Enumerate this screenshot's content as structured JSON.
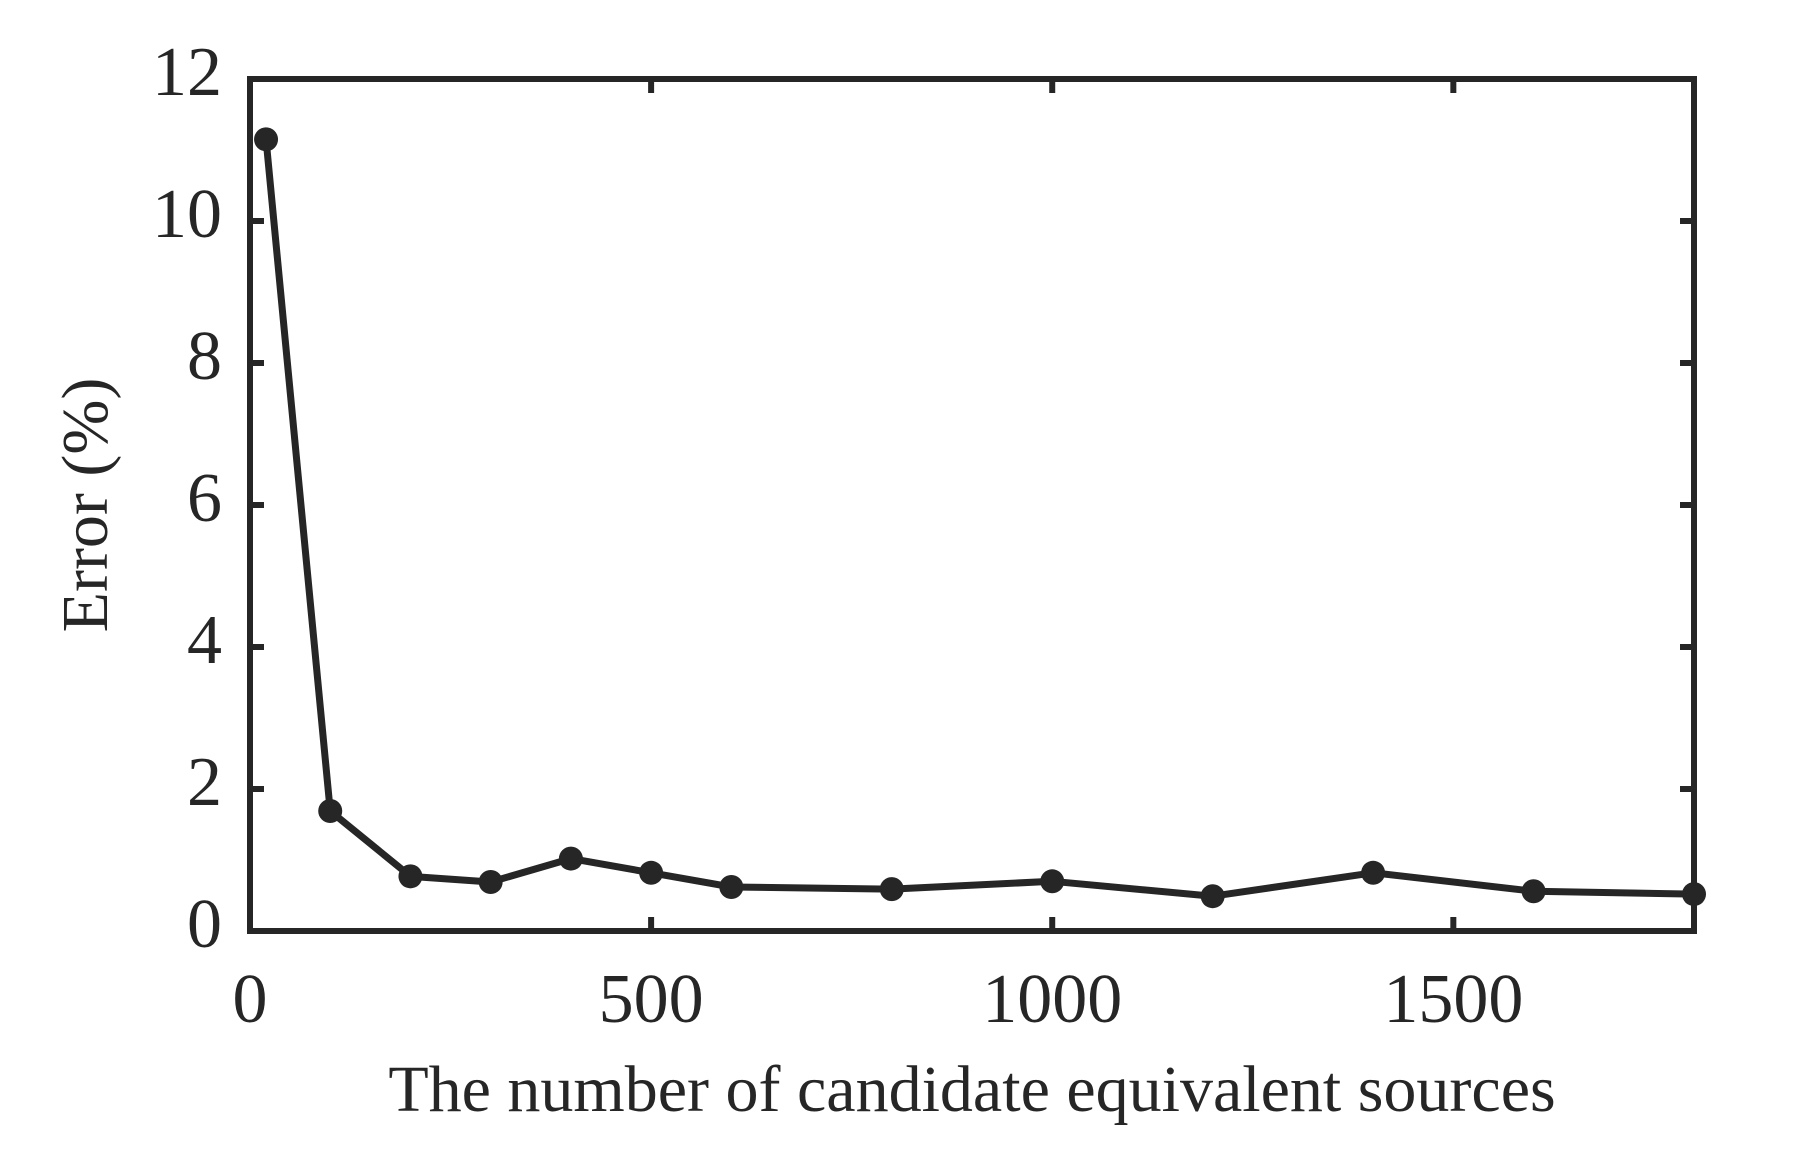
{
  "chart_data": {
    "type": "line",
    "xlabel": "The number of candidate equivalent sources",
    "ylabel": "Error  (%)",
    "x": [
      20,
      100,
      200,
      300,
      400,
      500,
      600,
      800,
      1000,
      1200,
      1400,
      1600,
      1800
    ],
    "series": [
      {
        "color": "#262626",
        "values": [
          11.15,
          1.69,
          0.77,
          0.69,
          1.02,
          0.82,
          0.62,
          0.59,
          0.7,
          0.49,
          0.82,
          0.56,
          0.52
        ]
      }
    ],
    "xlim": [
      0,
      1800
    ],
    "ylim": [
      0,
      12
    ],
    "xticks": [
      0,
      500,
      1000,
      1500
    ],
    "yticks": [
      0,
      2,
      4,
      6,
      8,
      10,
      12
    ]
  }
}
